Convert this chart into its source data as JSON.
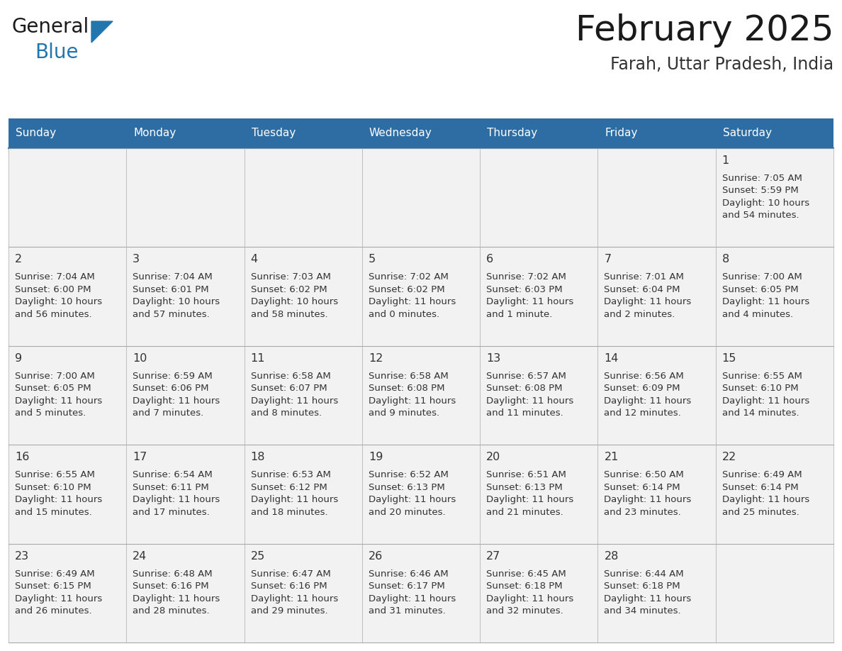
{
  "title": "February 2025",
  "subtitle": "Farah, Uttar Pradesh, India",
  "header_bg": "#2E6DA4",
  "header_text": "#FFFFFF",
  "cell_bg": "#F2F2F2",
  "border_color": "#AAAAAA",
  "text_color": "#333333",
  "day_headers": [
    "Sunday",
    "Monday",
    "Tuesday",
    "Wednesday",
    "Thursday",
    "Friday",
    "Saturday"
  ],
  "days": [
    {
      "day": 1,
      "col": 6,
      "row": 0,
      "sunrise": "7:05 AM",
      "sunset": "5:59 PM",
      "daylight": "10 hours and 54 minutes."
    },
    {
      "day": 2,
      "col": 0,
      "row": 1,
      "sunrise": "7:04 AM",
      "sunset": "6:00 PM",
      "daylight": "10 hours and 56 minutes."
    },
    {
      "day": 3,
      "col": 1,
      "row": 1,
      "sunrise": "7:04 AM",
      "sunset": "6:01 PM",
      "daylight": "10 hours and 57 minutes."
    },
    {
      "day": 4,
      "col": 2,
      "row": 1,
      "sunrise": "7:03 AM",
      "sunset": "6:02 PM",
      "daylight": "10 hours and 58 minutes."
    },
    {
      "day": 5,
      "col": 3,
      "row": 1,
      "sunrise": "7:02 AM",
      "sunset": "6:02 PM",
      "daylight": "11 hours and 0 minutes."
    },
    {
      "day": 6,
      "col": 4,
      "row": 1,
      "sunrise": "7:02 AM",
      "sunset": "6:03 PM",
      "daylight": "11 hours and 1 minute."
    },
    {
      "day": 7,
      "col": 5,
      "row": 1,
      "sunrise": "7:01 AM",
      "sunset": "6:04 PM",
      "daylight": "11 hours and 2 minutes."
    },
    {
      "day": 8,
      "col": 6,
      "row": 1,
      "sunrise": "7:00 AM",
      "sunset": "6:05 PM",
      "daylight": "11 hours and 4 minutes."
    },
    {
      "day": 9,
      "col": 0,
      "row": 2,
      "sunrise": "7:00 AM",
      "sunset": "6:05 PM",
      "daylight": "11 hours and 5 minutes."
    },
    {
      "day": 10,
      "col": 1,
      "row": 2,
      "sunrise": "6:59 AM",
      "sunset": "6:06 PM",
      "daylight": "11 hours and 7 minutes."
    },
    {
      "day": 11,
      "col": 2,
      "row": 2,
      "sunrise": "6:58 AM",
      "sunset": "6:07 PM",
      "daylight": "11 hours and 8 minutes."
    },
    {
      "day": 12,
      "col": 3,
      "row": 2,
      "sunrise": "6:58 AM",
      "sunset": "6:08 PM",
      "daylight": "11 hours and 9 minutes."
    },
    {
      "day": 13,
      "col": 4,
      "row": 2,
      "sunrise": "6:57 AM",
      "sunset": "6:08 PM",
      "daylight": "11 hours and 11 minutes."
    },
    {
      "day": 14,
      "col": 5,
      "row": 2,
      "sunrise": "6:56 AM",
      "sunset": "6:09 PM",
      "daylight": "11 hours and 12 minutes."
    },
    {
      "day": 15,
      "col": 6,
      "row": 2,
      "sunrise": "6:55 AM",
      "sunset": "6:10 PM",
      "daylight": "11 hours and 14 minutes."
    },
    {
      "day": 16,
      "col": 0,
      "row": 3,
      "sunrise": "6:55 AM",
      "sunset": "6:10 PM",
      "daylight": "11 hours and 15 minutes."
    },
    {
      "day": 17,
      "col": 1,
      "row": 3,
      "sunrise": "6:54 AM",
      "sunset": "6:11 PM",
      "daylight": "11 hours and 17 minutes."
    },
    {
      "day": 18,
      "col": 2,
      "row": 3,
      "sunrise": "6:53 AM",
      "sunset": "6:12 PM",
      "daylight": "11 hours and 18 minutes."
    },
    {
      "day": 19,
      "col": 3,
      "row": 3,
      "sunrise": "6:52 AM",
      "sunset": "6:13 PM",
      "daylight": "11 hours and 20 minutes."
    },
    {
      "day": 20,
      "col": 4,
      "row": 3,
      "sunrise": "6:51 AM",
      "sunset": "6:13 PM",
      "daylight": "11 hours and 21 minutes."
    },
    {
      "day": 21,
      "col": 5,
      "row": 3,
      "sunrise": "6:50 AM",
      "sunset": "6:14 PM",
      "daylight": "11 hours and 23 minutes."
    },
    {
      "day": 22,
      "col": 6,
      "row": 3,
      "sunrise": "6:49 AM",
      "sunset": "6:14 PM",
      "daylight": "11 hours and 25 minutes."
    },
    {
      "day": 23,
      "col": 0,
      "row": 4,
      "sunrise": "6:49 AM",
      "sunset": "6:15 PM",
      "daylight": "11 hours and 26 minutes."
    },
    {
      "day": 24,
      "col": 1,
      "row": 4,
      "sunrise": "6:48 AM",
      "sunset": "6:16 PM",
      "daylight": "11 hours and 28 minutes."
    },
    {
      "day": 25,
      "col": 2,
      "row": 4,
      "sunrise": "6:47 AM",
      "sunset": "6:16 PM",
      "daylight": "11 hours and 29 minutes."
    },
    {
      "day": 26,
      "col": 3,
      "row": 4,
      "sunrise": "6:46 AM",
      "sunset": "6:17 PM",
      "daylight": "11 hours and 31 minutes."
    },
    {
      "day": 27,
      "col": 4,
      "row": 4,
      "sunrise": "6:45 AM",
      "sunset": "6:18 PM",
      "daylight": "11 hours and 32 minutes."
    },
    {
      "day": 28,
      "col": 5,
      "row": 4,
      "sunrise": "6:44 AM",
      "sunset": "6:18 PM",
      "daylight": "11 hours and 34 minutes."
    }
  ],
  "num_rows": 5,
  "num_cols": 7,
  "fig_width": 11.88,
  "fig_height": 9.18,
  "dpi": 100
}
